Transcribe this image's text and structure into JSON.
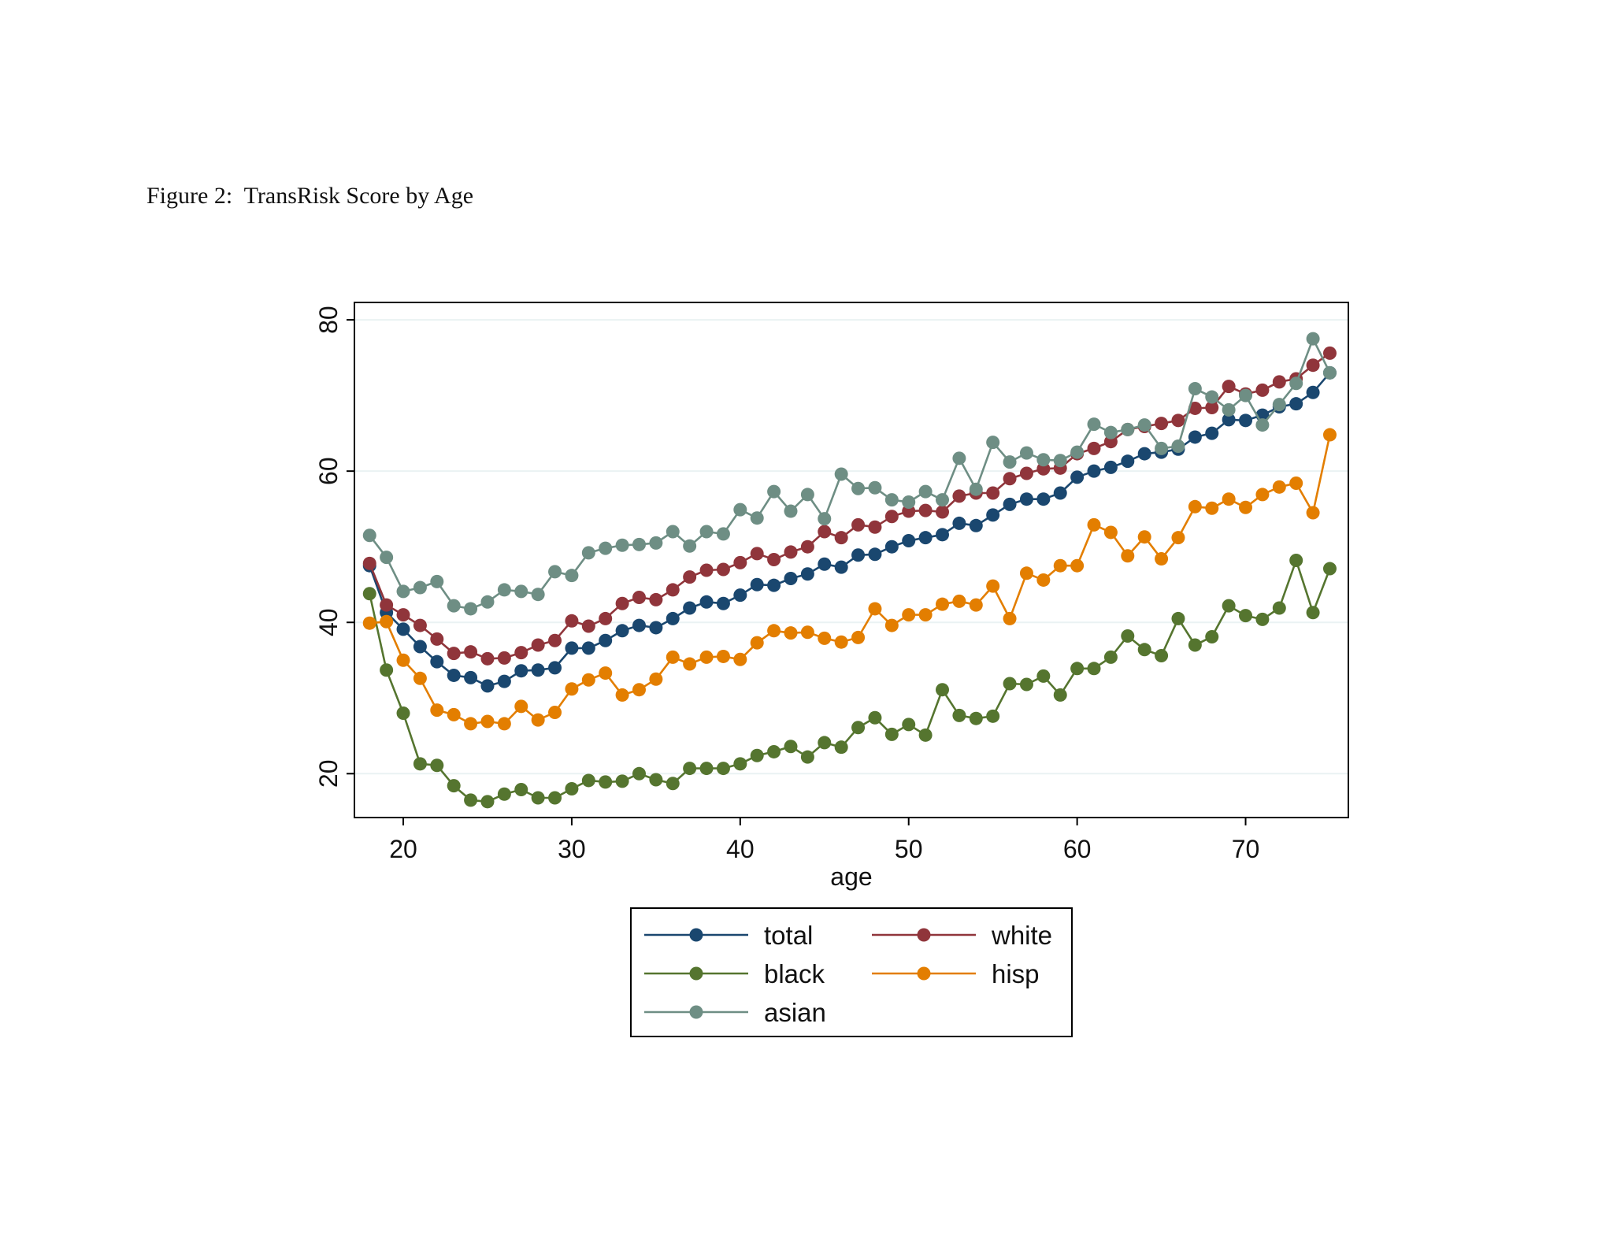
{
  "figure": {
    "caption": "Figure 2:  TransRisk Score by Age"
  },
  "chart_data": {
    "type": "line",
    "title": "",
    "xlabel": "age",
    "ylabel": "",
    "xlim": [
      17.1,
      76.1
    ],
    "ylim": [
      14.2,
      82.3
    ],
    "xticks": [
      20,
      30,
      40,
      50,
      60,
      70
    ],
    "yticks": [
      20,
      40,
      60,
      80
    ],
    "grid": "horizontal",
    "legend_position": "below",
    "x": [
      18,
      19,
      20,
      21,
      22,
      23,
      24,
      25,
      26,
      27,
      28,
      29,
      30,
      31,
      32,
      33,
      34,
      35,
      36,
      37,
      38,
      39,
      40,
      41,
      42,
      43,
      44,
      45,
      46,
      47,
      48,
      49,
      50,
      51,
      52,
      53,
      54,
      55,
      56,
      57,
      58,
      59,
      60,
      61,
      62,
      63,
      64,
      65,
      66,
      67,
      68,
      69,
      70,
      71,
      72,
      73,
      74,
      75
    ],
    "series": [
      {
        "name": "total",
        "color": "#1a476f",
        "values": [
          47.5,
          41.3,
          39.1,
          36.8,
          34.8,
          33.0,
          32.7,
          31.6,
          32.2,
          33.6,
          33.7,
          34.0,
          36.6,
          36.6,
          37.6,
          38.9,
          39.6,
          39.3,
          40.5,
          41.9,
          42.7,
          42.5,
          43.6,
          45.0,
          44.9,
          45.8,
          46.4,
          47.7,
          47.3,
          48.9,
          49.0,
          50.0,
          50.8,
          51.2,
          51.6,
          53.1,
          52.8,
          54.2,
          55.6,
          56.3,
          56.3,
          57.1,
          59.2,
          60.0,
          60.5,
          61.3,
          62.3,
          62.5,
          62.9,
          64.5,
          65.0,
          66.8,
          66.7,
          67.4,
          68.5,
          68.9,
          70.4,
          73.0
        ]
      },
      {
        "name": "white",
        "color": "#90353b",
        "values": [
          47.8,
          42.3,
          41.0,
          39.6,
          37.8,
          35.9,
          36.1,
          35.2,
          35.3,
          36.0,
          37.0,
          37.6,
          40.2,
          39.5,
          40.5,
          42.5,
          43.3,
          43.0,
          44.3,
          46.0,
          46.9,
          47.0,
          47.9,
          49.1,
          48.3,
          49.3,
          50.0,
          52.0,
          51.2,
          52.9,
          52.6,
          54.0,
          54.7,
          54.8,
          54.6,
          56.7,
          57.1,
          57.1,
          59.0,
          59.7,
          60.3,
          60.4,
          62.3,
          63.0,
          63.9,
          65.5,
          65.9,
          66.3,
          66.7,
          68.3,
          68.4,
          71.2,
          70.2,
          70.7,
          71.8,
          72.2,
          74.0,
          75.6
        ]
      },
      {
        "name": "black",
        "color": "#55752f",
        "values": [
          43.8,
          33.7,
          28.0,
          21.3,
          21.1,
          18.4,
          16.5,
          16.3,
          17.3,
          17.9,
          16.8,
          16.8,
          18.0,
          19.1,
          18.9,
          19.0,
          20.0,
          19.2,
          18.7,
          20.7,
          20.7,
          20.7,
          21.3,
          22.4,
          22.9,
          23.6,
          22.2,
          24.1,
          23.5,
          26.1,
          27.4,
          25.2,
          26.5,
          25.1,
          31.1,
          27.7,
          27.3,
          27.6,
          31.9,
          31.8,
          32.9,
          30.4,
          33.9,
          33.9,
          35.4,
          38.2,
          36.4,
          35.6,
          40.5,
          37.0,
          38.1,
          42.2,
          40.9,
          40.4,
          41.9,
          48.2,
          41.3,
          47.1
        ]
      },
      {
        "name": "hisp",
        "color": "#e37e00",
        "values": [
          39.9,
          40.1,
          35.0,
          32.6,
          28.4,
          27.8,
          26.6,
          26.9,
          26.6,
          28.9,
          27.1,
          28.1,
          31.2,
          32.4,
          33.3,
          30.4,
          31.1,
          32.5,
          35.4,
          34.5,
          35.4,
          35.5,
          35.1,
          37.3,
          38.9,
          38.6,
          38.7,
          37.9,
          37.4,
          38.0,
          41.8,
          39.6,
          41.0,
          41.0,
          42.4,
          42.8,
          42.3,
          44.8,
          40.5,
          46.5,
          45.6,
          47.5,
          47.5,
          52.9,
          51.9,
          48.8,
          51.3,
          48.4,
          51.2,
          55.3,
          55.1,
          56.3,
          55.2,
          56.9,
          57.9,
          58.4,
          54.5,
          64.8
        ]
      },
      {
        "name": "asian",
        "color": "#6e8e84",
        "values": [
          51.5,
          48.6,
          44.1,
          44.6,
          45.4,
          42.2,
          41.8,
          42.7,
          44.3,
          44.1,
          43.7,
          46.7,
          46.2,
          49.2,
          49.8,
          50.2,
          50.3,
          50.5,
          52.0,
          50.1,
          52.0,
          51.7,
          54.9,
          53.8,
          57.3,
          54.7,
          56.9,
          53.7,
          59.6,
          57.7,
          57.8,
          56.2,
          55.9,
          57.3,
          56.2,
          61.7,
          57.6,
          63.8,
          61.2,
          62.4,
          61.5,
          61.4,
          62.5,
          66.2,
          65.1,
          65.5,
          66.1,
          63.0,
          63.3,
          70.9,
          69.8,
          68.1,
          70.0,
          66.1,
          68.8,
          71.6,
          77.5,
          73.0
        ]
      }
    ]
  }
}
